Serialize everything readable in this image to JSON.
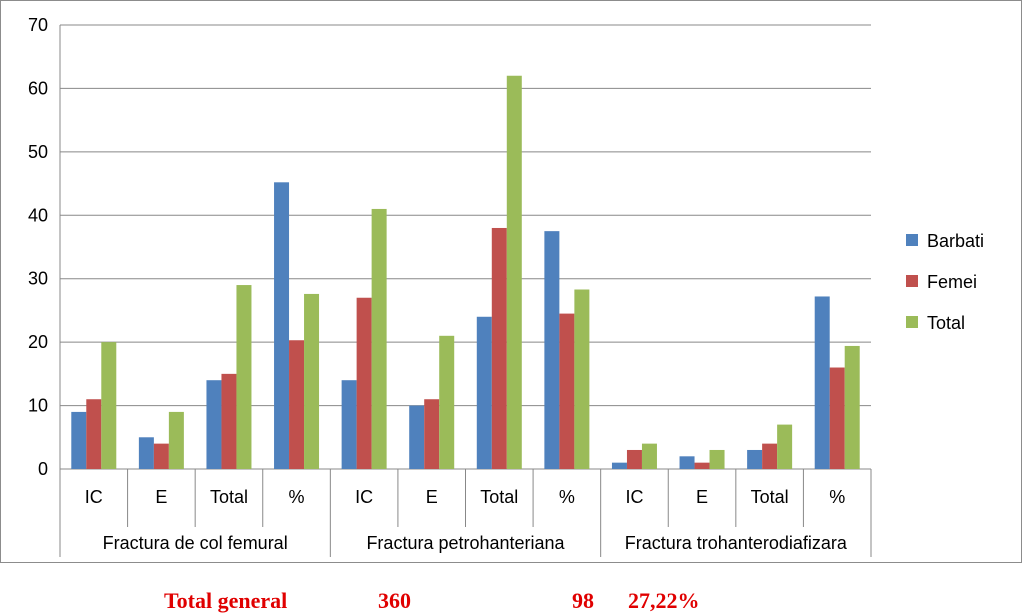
{
  "chart_data": {
    "type": "bar",
    "groups": [
      {
        "label": "Fractura de col femural",
        "categories": [
          "IC",
          "E",
          "Total",
          "%"
        ]
      },
      {
        "label": "Fractura petrohanteriana",
        "categories": [
          "IC",
          "E",
          "Total",
          "%"
        ]
      },
      {
        "label": "Fractura trohanterodiafizara",
        "categories": [
          "IC",
          "E",
          "Total",
          "%"
        ]
      }
    ],
    "categories": [
      "IC",
      "E",
      "Total",
      "%",
      "IC",
      "E",
      "Total",
      "%",
      "IC",
      "E",
      "Total",
      "%"
    ],
    "series": [
      {
        "name": "Barbati",
        "color": "#4f81bd",
        "values": [
          9,
          5,
          14,
          45.2,
          14,
          10,
          24,
          37.5,
          1,
          2,
          3,
          27.2
        ]
      },
      {
        "name": "Femei",
        "color": "#c0504d",
        "values": [
          11,
          4,
          15,
          20.3,
          27,
          11,
          38,
          24.5,
          3,
          1,
          4,
          16
        ]
      },
      {
        "name": "Total",
        "color": "#9bbb59",
        "values": [
          20,
          9,
          29,
          27.6,
          41,
          21,
          62,
          28.3,
          4,
          3,
          7,
          19.4
        ]
      }
    ],
    "ylim": [
      0,
      70
    ],
    "yticks": [
      0,
      10,
      20,
      30,
      40,
      50,
      60,
      70
    ],
    "grid": true,
    "legend": "right",
    "title": "",
    "xlabel": "",
    "ylabel": ""
  },
  "footer": {
    "label": "Total general",
    "value1": "360",
    "value2": "98",
    "value3": "27,22%"
  }
}
